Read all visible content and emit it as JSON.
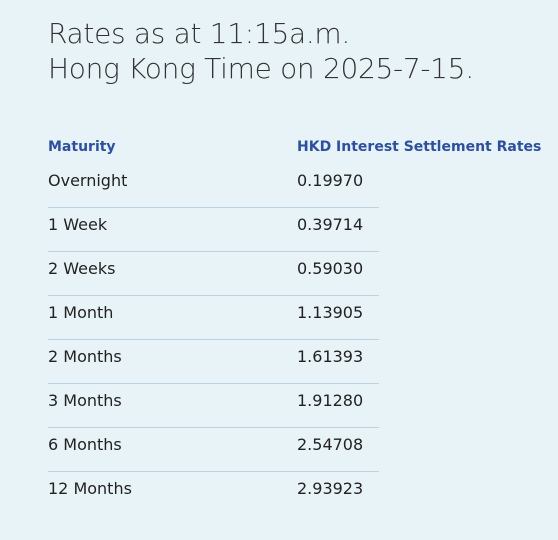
{
  "header": {
    "title_line1": "Rates as at 11:15a.m.",
    "title_line2": "Hong Kong Time on 2025-7-15."
  },
  "table": {
    "columns": [
      "Maturity",
      "HKD Interest Settlement Rates"
    ],
    "rows": [
      [
        "Overnight",
        "0.19970"
      ],
      [
        "1 Week",
        "0.39714"
      ],
      [
        "2 Weeks",
        "0.59030"
      ],
      [
        "1 Month",
        "1.13905"
      ],
      [
        "2 Months",
        "1.61393"
      ],
      [
        "3 Months",
        "1.91280"
      ],
      [
        "6 Months",
        "2.54708"
      ],
      [
        "12 Months",
        "2.93923"
      ]
    ]
  }
}
